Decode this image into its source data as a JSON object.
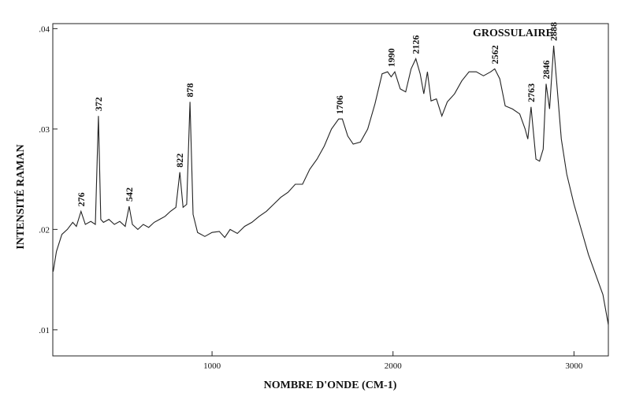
{
  "chart_data": {
    "type": "line",
    "title": "GROSSULAIRE",
    "x_label": "NOMBRE D'ONDE (CM-1)",
    "y_label": "INTENSITÉ RAMAN",
    "xlim": [
      120,
      3190
    ],
    "ylim": [
      0.0074,
      0.0405
    ],
    "xticks": [
      1000,
      2000,
      3000
    ],
    "yticks": [
      {
        "value": 0.04,
        "label": ".04"
      },
      {
        "value": 0.03,
        "label": ".03"
      },
      {
        "value": 0.02,
        "label": ".02"
      },
      {
        "value": 0.01,
        "label": ".01"
      }
    ],
    "color": "#222",
    "x": [
      122,
      140,
      170,
      200,
      230,
      250,
      276,
      300,
      330,
      355,
      372,
      385,
      400,
      430,
      460,
      490,
      520,
      542,
      560,
      590,
      620,
      650,
      680,
      710,
      740,
      770,
      800,
      822,
      840,
      860,
      878,
      895,
      920,
      960,
      1000,
      1040,
      1070,
      1100,
      1140,
      1180,
      1220,
      1260,
      1300,
      1340,
      1380,
      1420,
      1460,
      1500,
      1540,
      1580,
      1620,
      1660,
      1700,
      1720,
      1750,
      1780,
      1820,
      1860,
      1900,
      1940,
      1970,
      1990,
      2010,
      2040,
      2070,
      2100,
      2126,
      2150,
      2170,
      2190,
      2210,
      2240,
      2270,
      2300,
      2340,
      2380,
      2420,
      2460,
      2500,
      2540,
      2562,
      2590,
      2620,
      2660,
      2700,
      2730,
      2745,
      2763,
      2790,
      2810,
      2830,
      2846,
      2865,
      2888,
      2905,
      2930,
      2960,
      3000,
      3040,
      3080,
      3120,
      3160,
      3190
    ],
    "values": [
      0.0158,
      0.0178,
      0.0195,
      0.02,
      0.0207,
      0.0203,
      0.0218,
      0.0205,
      0.0208,
      0.0205,
      0.0313,
      0.021,
      0.0207,
      0.021,
      0.0205,
      0.0208,
      0.0203,
      0.0223,
      0.0205,
      0.02,
      0.0205,
      0.0202,
      0.0207,
      0.021,
      0.0213,
      0.0218,
      0.0222,
      0.0257,
      0.0222,
      0.0225,
      0.0327,
      0.0215,
      0.0197,
      0.0193,
      0.0197,
      0.0198,
      0.0192,
      0.02,
      0.0196,
      0.0203,
      0.0207,
      0.0213,
      0.0218,
      0.0225,
      0.0232,
      0.0237,
      0.0245,
      0.0245,
      0.026,
      0.027,
      0.0283,
      0.03,
      0.031,
      0.031,
      0.0293,
      0.0285,
      0.0287,
      0.03,
      0.0325,
      0.0355,
      0.0357,
      0.0352,
      0.0357,
      0.034,
      0.0337,
      0.036,
      0.037,
      0.0355,
      0.0335,
      0.0357,
      0.0328,
      0.033,
      0.0313,
      0.0327,
      0.0335,
      0.0348,
      0.0357,
      0.0357,
      0.0353,
      0.0357,
      0.036,
      0.035,
      0.0323,
      0.032,
      0.0315,
      0.03,
      0.029,
      0.0322,
      0.027,
      0.0268,
      0.028,
      0.0345,
      0.032,
      0.0383,
      0.0345,
      0.029,
      0.0255,
      0.0225,
      0.02,
      0.0175,
      0.0155,
      0.0135,
      0.0105
    ],
    "annotations": [
      {
        "text": "276",
        "x": 276
      },
      {
        "text": "372",
        "x": 372
      },
      {
        "text": "542",
        "x": 542
      },
      {
        "text": "822",
        "x": 822
      },
      {
        "text": "878",
        "x": 878
      },
      {
        "text": "1706",
        "x": 1706
      },
      {
        "text": "1990",
        "x": 1990
      },
      {
        "text": "2126",
        "x": 2126
      },
      {
        "text": "2562",
        "x": 2562
      },
      {
        "text": "2763",
        "x": 2763
      },
      {
        "text": "2846",
        "x": 2846
      },
      {
        "text": "2888",
        "x": 2888
      }
    ]
  }
}
